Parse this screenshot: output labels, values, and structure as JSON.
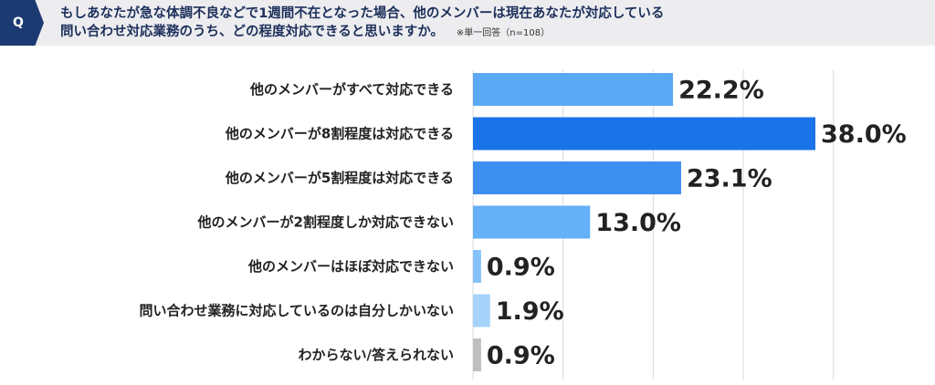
{
  "question": {
    "badge": "Q",
    "line1": "もしあなたが急な体調不良などで1週間不在となった場合、他のメンバーは現在あなたが対応している",
    "line2": "問い合わせ対応業務のうち、どの程度対応できると思いますか。",
    "note": "※単一回答（n=108）"
  },
  "chart_data": {
    "type": "bar",
    "orientation": "horizontal",
    "categories": [
      "他のメンバーがすべて対応できる",
      "他のメンバーが8割程度は対応できる",
      "他のメンバーが5割程度は対応できる",
      "他のメンバーが2割程度しか対応できない",
      "他のメンバーはほぼ対応できない",
      "問い合わせ業務に対応しているのは自分しかいない",
      "わからない/答えられない"
    ],
    "values": [
      22.2,
      38.0,
      23.1,
      13.0,
      0.9,
      1.9,
      0.9
    ],
    "value_labels": [
      "22.2%",
      "38.0%",
      "23.1%",
      "13.0%",
      "0.9%",
      "1.9%",
      "0.9%"
    ],
    "bar_colors": [
      "#5ba8f5",
      "#1a73e8",
      "#3d8ff0",
      "#65b0f7",
      "#86c2fa",
      "#a6d3fb",
      "#bfbfbf"
    ],
    "xlim": [
      0,
      40
    ],
    "grid": true
  }
}
